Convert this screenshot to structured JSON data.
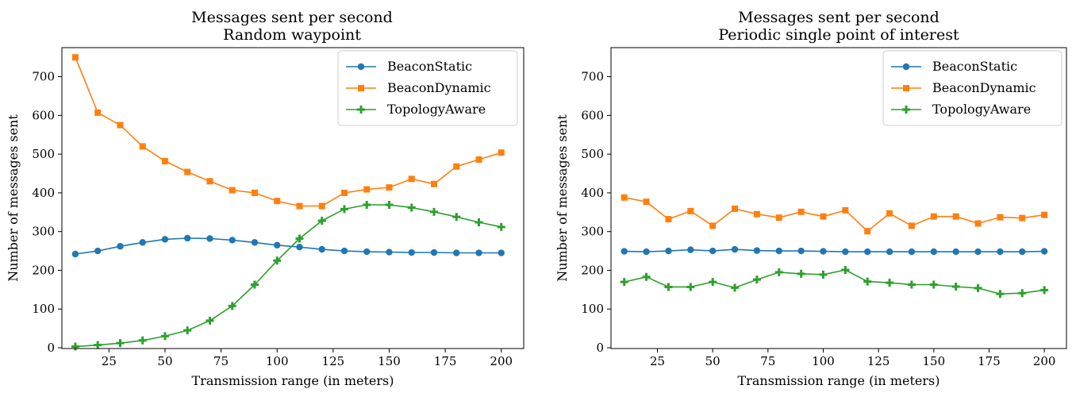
{
  "chart_data": [
    {
      "type": "line",
      "title": [
        "Messages sent per second",
        "Random waypoint"
      ],
      "xlabel": "Transmission range (in meters)",
      "ylabel": "Number of messages sent",
      "xlim": [
        4,
        210
      ],
      "ylim": [
        -2,
        775
      ],
      "xticks": [
        25,
        50,
        75,
        100,
        125,
        150,
        175,
        200
      ],
      "yticks": [
        0,
        100,
        200,
        300,
        400,
        500,
        600,
        700
      ],
      "grid": false,
      "legend_position": "top-right",
      "x": [
        10,
        20,
        30,
        40,
        50,
        60,
        70,
        80,
        90,
        100,
        110,
        120,
        130,
        140,
        150,
        160,
        170,
        180,
        190,
        200
      ],
      "series": [
        {
          "name": "BeaconStatic",
          "color": "#1f77b4",
          "marker": "circle",
          "values": [
            242,
            250,
            262,
            272,
            280,
            283,
            282,
            278,
            272,
            265,
            260,
            254,
            250,
            248,
            247,
            246,
            246,
            245,
            245,
            245
          ]
        },
        {
          "name": "BeaconDynamic",
          "color": "#ff7f0e",
          "marker": "square",
          "values": [
            750,
            607,
            575,
            520,
            482,
            454,
            430,
            407,
            400,
            379,
            366,
            366,
            400,
            409,
            414,
            436,
            423,
            468,
            486,
            504
          ]
        },
        {
          "name": "TopologyAware",
          "color": "#2ca02c",
          "marker": "plus",
          "values": [
            3,
            7,
            12,
            19,
            30,
            45,
            70,
            108,
            163,
            225,
            282,
            328,
            358,
            369,
            369,
            362,
            351,
            338,
            324,
            312
          ]
        }
      ]
    },
    {
      "type": "line",
      "title": [
        "Messages sent per second",
        "Periodic single point of interest"
      ],
      "xlabel": "Transmission range (in meters)",
      "ylabel": "Number of messages sent",
      "xlim": [
        4,
        210
      ],
      "ylim": [
        -2,
        775
      ],
      "xticks": [
        25,
        50,
        75,
        100,
        125,
        150,
        175,
        200
      ],
      "yticks": [
        0,
        100,
        200,
        300,
        400,
        500,
        600,
        700
      ],
      "grid": false,
      "legend_position": "top-right",
      "x": [
        10,
        20,
        30,
        40,
        50,
        60,
        70,
        80,
        90,
        100,
        110,
        120,
        130,
        140,
        150,
        160,
        170,
        180,
        190,
        200
      ],
      "series": [
        {
          "name": "BeaconStatic",
          "color": "#1f77b4",
          "marker": "circle",
          "values": [
            249,
            248,
            250,
            253,
            250,
            254,
            251,
            250,
            250,
            249,
            248,
            248,
            248,
            248,
            248,
            248,
            248,
            248,
            248,
            249
          ]
        },
        {
          "name": "BeaconDynamic",
          "color": "#ff7f0e",
          "marker": "square",
          "values": [
            388,
            377,
            332,
            353,
            315,
            359,
            345,
            336,
            351,
            339,
            355,
            301,
            347,
            315,
            339,
            339,
            321,
            337,
            335,
            343
          ]
        },
        {
          "name": "TopologyAware",
          "color": "#2ca02c",
          "marker": "plus",
          "values": [
            170,
            183,
            157,
            157,
            170,
            155,
            176,
            195,
            191,
            189,
            201,
            171,
            168,
            163,
            163,
            158,
            154,
            139,
            141,
            149
          ]
        }
      ]
    }
  ]
}
